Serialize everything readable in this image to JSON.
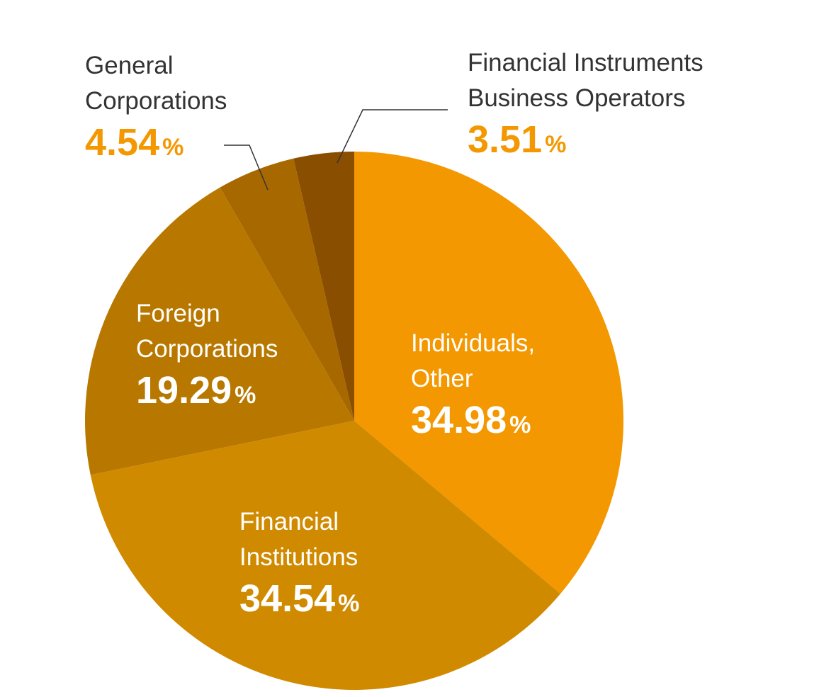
{
  "chart_data": {
    "type": "pie",
    "categories": [
      "Individuals, Other",
      "Financial Institutions",
      "Foreign Corporations",
      "General Corporations",
      "Financial Instruments Business Operators"
    ],
    "values": [
      34.98,
      34.54,
      19.29,
      4.54,
      3.51
    ],
    "colors": [
      "#f39800",
      "#d08a00",
      "#b87800",
      "#a86800",
      "#8a4e00"
    ],
    "unit": "%"
  }
}
